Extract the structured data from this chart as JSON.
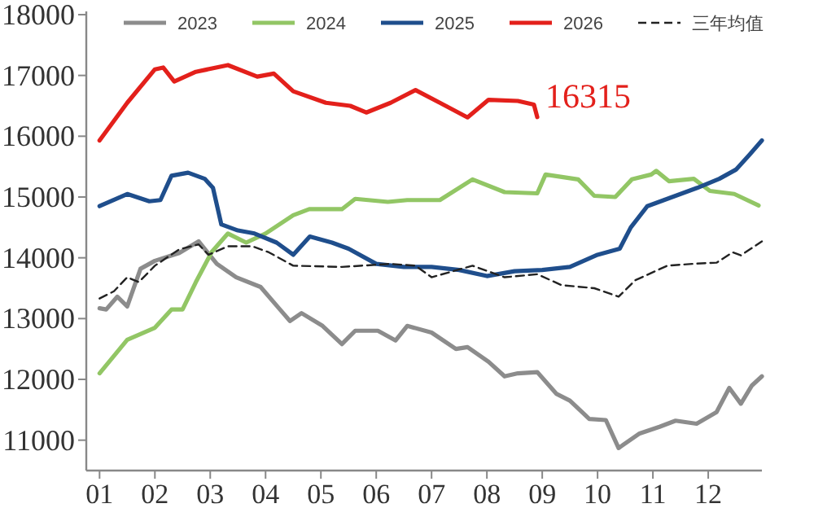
{
  "chart_data": {
    "type": "line",
    "legend": "top",
    "xlim": [
      0.76,
      12.97
    ],
    "ylim": [
      10500,
      18000
    ],
    "xticks": [
      {
        "value": 1,
        "label": "01"
      },
      {
        "value": 2,
        "label": "02"
      },
      {
        "value": 3,
        "label": "03"
      },
      {
        "value": 4,
        "label": "04"
      },
      {
        "value": 5,
        "label": "05"
      },
      {
        "value": 6,
        "label": "06"
      },
      {
        "value": 7,
        "label": "07"
      },
      {
        "value": 8,
        "label": "08"
      },
      {
        "value": 9,
        "label": "09"
      },
      {
        "value": 10,
        "label": "10"
      },
      {
        "value": 11,
        "label": "11"
      },
      {
        "value": 12,
        "label": "12"
      }
    ],
    "yticks": [
      11000,
      12000,
      13000,
      14000,
      15000,
      16000,
      17000,
      18000
    ],
    "annotations": [
      {
        "text": "16315",
        "x": 8.91,
        "y": 16315
      }
    ],
    "series": [
      {
        "name": "2023",
        "color": "#8c8c8c",
        "x": [
          1,
          1.12,
          1.32,
          1.5,
          1.74,
          2,
          2.44,
          2.79,
          3.12,
          3.47,
          3.91,
          4.26,
          4.44,
          4.65,
          5.03,
          5.38,
          5.62,
          6.03,
          6.35,
          6.56,
          7,
          7.44,
          7.65,
          8.03,
          8.32,
          8.56,
          8.91,
          9.26,
          9.5,
          9.85,
          10.15,
          10.38,
          10.76,
          11.12,
          11.41,
          11.79,
          12.15,
          12.38,
          12.59,
          12.79,
          12.97
        ],
        "values": [
          13170,
          13150,
          13360,
          13200,
          13820,
          13950,
          14080,
          14270,
          13900,
          13680,
          13520,
          13150,
          12960,
          13090,
          12880,
          12580,
          12800,
          12800,
          12640,
          12880,
          12770,
          12500,
          12530,
          12290,
          12050,
          12100,
          12120,
          11760,
          11650,
          11350,
          11330,
          10870,
          11110,
          11220,
          11320,
          11270,
          11460,
          11860,
          11600,
          11900,
          12050
        ]
      },
      {
        "name": "2024",
        "color": "#92c665",
        "x": [
          1,
          1.5,
          2,
          2.3,
          2.5,
          2.74,
          3.03,
          3.32,
          3.65,
          4.0,
          4.5,
          4.79,
          5.38,
          5.62,
          6.21,
          6.56,
          7.15,
          7.74,
          8.32,
          8.91,
          9.06,
          9.65,
          9.94,
          10.32,
          10.62,
          10.97,
          11.06,
          11.29,
          11.74,
          12.03,
          12.47,
          12.91
        ],
        "values": [
          12100,
          12650,
          12850,
          13150,
          13150,
          13600,
          14100,
          14400,
          14250,
          14400,
          14700,
          14800,
          14800,
          14970,
          14920,
          14950,
          14950,
          15290,
          15080,
          15060,
          15370,
          15290,
          15020,
          15000,
          15290,
          15370,
          15430,
          15260,
          15300,
          15100,
          15050,
          14860
        ]
      },
      {
        "name": "2025",
        "color": "#1f4e8c",
        "x": [
          1,
          1.5,
          1.9,
          2.1,
          2.3,
          2.6,
          2.9,
          3.05,
          3.2,
          3.5,
          3.8,
          4.2,
          4.5,
          4.8,
          5.2,
          5.5,
          6,
          6.5,
          7,
          7.5,
          8,
          8.5,
          9,
          9.5,
          10,
          10.4,
          10.6,
          10.9,
          11.2,
          11.5,
          11.8,
          12.2,
          12.5,
          12.75,
          12.97
        ],
        "values": [
          14850,
          15050,
          14930,
          14950,
          15350,
          15400,
          15300,
          15150,
          14550,
          14450,
          14400,
          14250,
          14050,
          14350,
          14250,
          14150,
          13900,
          13850,
          13850,
          13800,
          13700,
          13780,
          13800,
          13850,
          14050,
          14150,
          14500,
          14850,
          14950,
          15050,
          15150,
          15300,
          15450,
          15700,
          15930
        ]
      },
      {
        "name": "2026",
        "color": "#e3201b",
        "x": [
          1,
          1.5,
          2,
          2.15,
          2.35,
          2.74,
          3.32,
          3.85,
          4.15,
          4.5,
          5.09,
          5.53,
          5.82,
          6.26,
          6.71,
          7.15,
          7.65,
          8.03,
          8.56,
          8.85,
          8.91
        ],
        "values": [
          15930,
          16550,
          17100,
          17130,
          16900,
          17060,
          17170,
          16980,
          17030,
          16740,
          16550,
          16500,
          16390,
          16550,
          16760,
          16550,
          16310,
          16600,
          16580,
          16520,
          16315
        ]
      },
      {
        "name": "三年均值",
        "color": "#222222",
        "line_style": "dashed",
        "x": [
          1,
          1.26,
          1.5,
          1.71,
          2,
          2.44,
          2.79,
          2.97,
          3.32,
          3.76,
          4.06,
          4.5,
          5.38,
          6.26,
          6.71,
          7,
          7.74,
          8.32,
          8.91,
          9.35,
          9.94,
          10.38,
          10.68,
          11.26,
          11.71,
          12.15,
          12.44,
          12.59,
          12.97
        ],
        "values": [
          13330,
          13450,
          13680,
          13600,
          13870,
          14140,
          14220,
          14050,
          14190,
          14190,
          14090,
          13870,
          13850,
          13900,
          13870,
          13680,
          13870,
          13680,
          13730,
          13550,
          13500,
          13360,
          13630,
          13870,
          13900,
          13920,
          14090,
          14040,
          14270
        ]
      }
    ]
  }
}
